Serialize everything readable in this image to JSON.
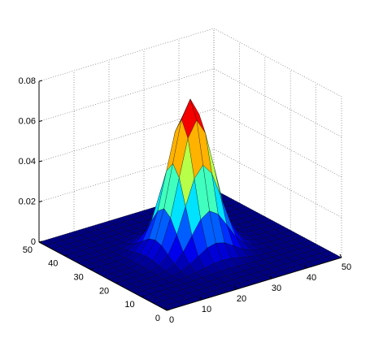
{
  "chart_data": {
    "type": "surface",
    "x": [
      0,
      2.5,
      5,
      7.5,
      10,
      12.5,
      15,
      17.5,
      20,
      22.5,
      25,
      27.5,
      30,
      32.5,
      35,
      37.5,
      40,
      42.5,
      45,
      47.5,
      50
    ],
    "y": [
      0,
      2.5,
      5,
      7.5,
      10,
      12.5,
      15,
      17.5,
      20,
      22.5,
      25,
      27.5,
      30,
      32.5,
      35,
      37.5,
      40,
      42.5,
      45,
      47.5,
      50
    ],
    "z": [
      [
        0,
        0,
        0,
        0,
        0,
        0,
        0,
        0,
        0,
        0,
        0,
        0,
        0,
        0,
        0,
        0,
        0,
        0,
        0,
        0,
        0
      ],
      [
        0,
        0,
        0,
        0,
        0,
        0,
        0,
        0,
        0,
        0,
        0,
        0,
        0,
        0,
        0,
        0,
        0,
        0,
        0,
        0,
        0
      ],
      [
        0,
        0,
        0,
        0,
        0,
        0,
        0,
        0,
        0,
        0,
        0,
        0,
        0,
        0,
        0,
        0,
        0,
        0,
        0,
        0,
        0
      ],
      [
        0,
        0,
        0,
        0,
        0,
        0,
        0,
        0.0001,
        0.0001,
        0.0001,
        0.0002,
        0.0001,
        0.0001,
        0.0001,
        0,
        0,
        0,
        0,
        0,
        0,
        0
      ],
      [
        0,
        0,
        0,
        0,
        0,
        0,
        0.0001,
        0.0003,
        0.0005,
        0.0007,
        0.0008,
        0.0007,
        0.0005,
        0.0003,
        0.0001,
        0,
        0,
        0,
        0,
        0,
        0
      ],
      [
        0,
        0,
        0,
        0,
        0,
        0.0001,
        0.0004,
        0.0011,
        0.002,
        0.0029,
        0.0033,
        0.0029,
        0.002,
        0.0011,
        0.0004,
        0.0001,
        0,
        0,
        0,
        0,
        0
      ],
      [
        0,
        0,
        0,
        0,
        0.0001,
        0.0004,
        0.0014,
        0.0033,
        0.0062,
        0.009,
        0.0101,
        0.009,
        0.0062,
        0.0033,
        0.0014,
        0.0004,
        0.0001,
        0,
        0,
        0,
        0
      ],
      [
        0,
        0,
        0,
        0.0001,
        0.0003,
        0.0011,
        0.0033,
        0.0079,
        0.0148,
        0.0215,
        0.0244,
        0.0215,
        0.0148,
        0.0079,
        0.0033,
        0.0011,
        0.0003,
        0.0001,
        0,
        0,
        0
      ],
      [
        0,
        0,
        0,
        0.0001,
        0.0005,
        0.002,
        0.0062,
        0.0148,
        0.0276,
        0.0401,
        0.0455,
        0.0401,
        0.0276,
        0.0148,
        0.0062,
        0.002,
        0.0005,
        0.0001,
        0,
        0,
        0
      ],
      [
        0,
        0,
        0,
        0.0001,
        0.0007,
        0.0029,
        0.009,
        0.0215,
        0.0401,
        0.0584,
        0.0662,
        0.0584,
        0.0401,
        0.0215,
        0.009,
        0.0029,
        0.0007,
        0.0001,
        0,
        0,
        0
      ],
      [
        0,
        0,
        0,
        0.0002,
        0.0008,
        0.0033,
        0.0101,
        0.0244,
        0.0455,
        0.0662,
        0.075,
        0.0662,
        0.0455,
        0.0244,
        0.0101,
        0.0033,
        0.0008,
        0.0002,
        0,
        0,
        0
      ],
      [
        0,
        0,
        0,
        0.0001,
        0.0007,
        0.0029,
        0.009,
        0.0215,
        0.0401,
        0.0584,
        0.0662,
        0.0584,
        0.0401,
        0.0215,
        0.009,
        0.0029,
        0.0007,
        0.0001,
        0,
        0,
        0
      ],
      [
        0,
        0,
        0,
        0.0001,
        0.0005,
        0.002,
        0.0062,
        0.0148,
        0.0276,
        0.0401,
        0.0455,
        0.0401,
        0.0276,
        0.0148,
        0.0062,
        0.002,
        0.0005,
        0.0001,
        0,
        0,
        0
      ],
      [
        0,
        0,
        0,
        0.0001,
        0.0003,
        0.0011,
        0.0033,
        0.0079,
        0.0148,
        0.0215,
        0.0244,
        0.0215,
        0.0148,
        0.0079,
        0.0033,
        0.0011,
        0.0003,
        0.0001,
        0,
        0,
        0
      ],
      [
        0,
        0,
        0,
        0,
        0.0001,
        0.0004,
        0.0014,
        0.0033,
        0.0062,
        0.009,
        0.0101,
        0.009,
        0.0062,
        0.0033,
        0.0014,
        0.0004,
        0.0001,
        0,
        0,
        0,
        0
      ],
      [
        0,
        0,
        0,
        0,
        0,
        0.0001,
        0.0004,
        0.0011,
        0.002,
        0.0029,
        0.0033,
        0.0029,
        0.002,
        0.0011,
        0.0004,
        0.0001,
        0,
        0,
        0,
        0,
        0
      ],
      [
        0,
        0,
        0,
        0,
        0,
        0,
        0.0001,
        0.0003,
        0.0005,
        0.0007,
        0.0008,
        0.0007,
        0.0005,
        0.0003,
        0.0001,
        0,
        0,
        0,
        0,
        0,
        0
      ],
      [
        0,
        0,
        0,
        0,
        0,
        0,
        0,
        0.0001,
        0.0001,
        0.0001,
        0.0002,
        0.0001,
        0.0001,
        0.0001,
        0,
        0,
        0,
        0,
        0,
        0,
        0
      ],
      [
        0,
        0,
        0,
        0,
        0,
        0,
        0,
        0,
        0,
        0,
        0,
        0,
        0,
        0,
        0,
        0,
        0,
        0,
        0,
        0,
        0
      ],
      [
        0,
        0,
        0,
        0,
        0,
        0,
        0,
        0,
        0,
        0,
        0,
        0,
        0,
        0,
        0,
        0,
        0,
        0,
        0,
        0,
        0
      ],
      [
        0,
        0,
        0,
        0,
        0,
        0,
        0,
        0,
        0,
        0,
        0,
        0,
        0,
        0,
        0,
        0,
        0,
        0,
        0,
        0,
        0
      ]
    ],
    "xlim": [
      0,
      50
    ],
    "ylim": [
      0,
      50
    ],
    "zlim": [
      0,
      0.08
    ],
    "xticks": [
      0,
      10,
      20,
      30,
      40,
      50
    ],
    "yticks": [
      0,
      10,
      20,
      30,
      40,
      50
    ],
    "zticks": [
      0,
      0.02,
      0.04,
      0.06,
      0.08
    ],
    "grid": true,
    "colormap": "jet"
  }
}
